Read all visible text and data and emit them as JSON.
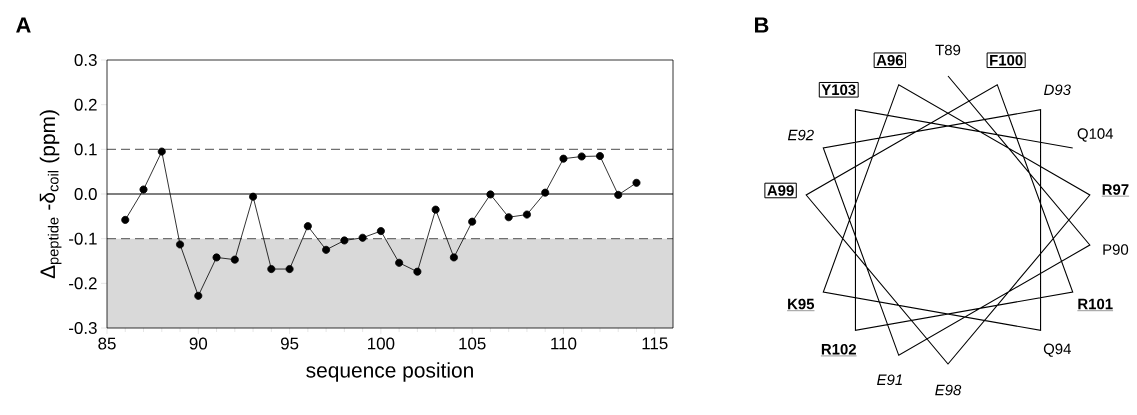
{
  "chart_data": [
    {
      "type": "line",
      "title": "A",
      "xlabel": "sequence position",
      "ylabel": "Δ$_{peptide}$ -δ$_{coil}$ (ppm)",
      "x": [
        86,
        87,
        88,
        89,
        90,
        91,
        92,
        93,
        94,
        95,
        96,
        97,
        98,
        99,
        100,
        101,
        102,
        103,
        104,
        105,
        106,
        107,
        108,
        109,
        110,
        111,
        112,
        113,
        114
      ],
      "series": [
        {
          "color": "#000000",
          "values": [
            -0.058,
            0.01,
            0.095,
            -0.113,
            -0.228,
            -0.142,
            -0.147,
            -0.006,
            -0.168,
            -0.168,
            -0.072,
            -0.125,
            -0.104,
            -0.098,
            -0.083,
            -0.154,
            -0.174,
            -0.035,
            -0.142,
            -0.062,
            -0.001,
            -0.052,
            -0.046,
            0.003,
            0.079,
            0.084,
            0.085,
            -0.002,
            0.025
          ]
        }
      ],
      "xlim": [
        85,
        116
      ],
      "xticks": [
        85,
        90,
        95,
        100,
        105,
        110,
        115
      ],
      "ylim": [
        -0.3,
        0.3
      ],
      "yticks": [
        {
          "value": -0.3,
          "label": "-0.3"
        },
        {
          "value": -0.2,
          "label": "-0.2"
        },
        {
          "value": -0.1,
          "label": "-0.1"
        },
        {
          "value": 0,
          "label": "0.0"
        },
        {
          "value": 0.1,
          "label": "0.1"
        },
        {
          "value": 0.2,
          "label": "0.2"
        },
        {
          "value": 0.3,
          "label": "0.3"
        }
      ],
      "ref_lines": [
        {
          "axis": "y",
          "value": 0.1,
          "color": "#707070",
          "line_style": "dashed"
        },
        {
          "axis": "y",
          "value": -0.1,
          "color": "#707070",
          "line_style": "dashed"
        },
        {
          "axis": "y",
          "value": 0,
          "color": "#000000",
          "line_style": "solid"
        }
      ],
      "bands": [
        {
          "axis": "y",
          "from": -0.3,
          "to": -0.1,
          "color": "#d9d9d9"
        }
      ],
      "marker": "circle",
      "line_style": "solid"
    },
    {
      "type": "other",
      "title": "B",
      "annotations": [
        "T89",
        "P90",
        "E91",
        "E92",
        "D93",
        "Q94",
        "K95",
        "A96",
        "R97",
        "E98",
        "A99",
        "F100",
        "R101",
        "R102",
        "Y103",
        "Q104"
      ]
    }
  ]
}
